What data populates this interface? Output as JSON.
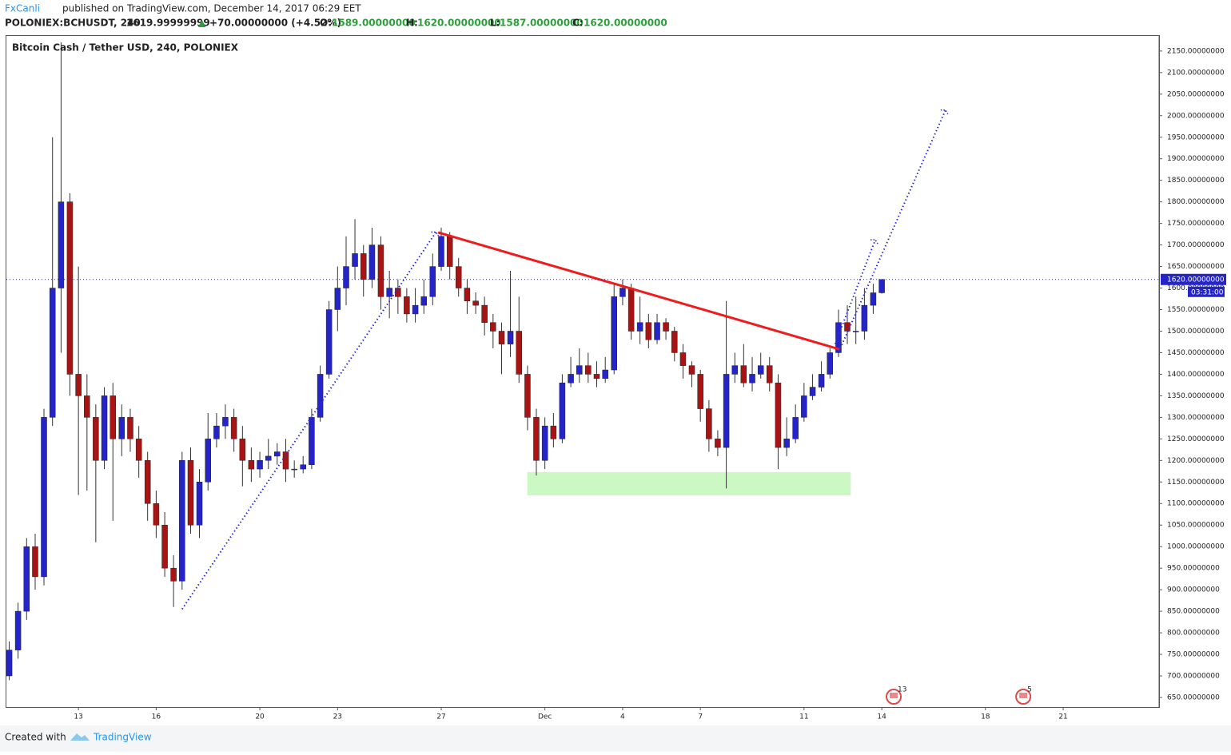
{
  "header": {
    "author": "FxCanli",
    "published": "published on TradingView.com, December 14, 2017 06:29 EET",
    "symbol": "POLONIEX:BCHUSDT, 240",
    "price": "1619.99999999",
    "arrow": "▲",
    "change": "+70.00000000 (+4.52%)",
    "o_label": "O:",
    "o_value": "1589.00000000",
    "h_label": "H:",
    "h_value": "1620.00000000",
    "l_label": "L:",
    "l_value": "1587.00000000",
    "c_label": "C:",
    "c_value": "1620.00000000"
  },
  "footer": {
    "created": "Created with",
    "brand": "TradingView"
  },
  "chart_data": {
    "type": "candlestick",
    "title": "Bitcoin Cash / Tether USD, 240, POLONIEX",
    "up_color": "#2424c8",
    "down_color": "#a81414",
    "x": [
      10.33,
      10.67,
      11,
      11.33,
      11.67,
      12,
      12.33,
      12.67,
      13,
      13.33,
      13.67,
      14,
      14.33,
      14.67,
      15,
      15.33,
      15.67,
      16,
      16.33,
      16.67,
      17,
      17.33,
      17.67,
      18,
      18.33,
      18.67,
      19,
      19.33,
      19.67,
      20,
      20.33,
      20.67,
      21,
      21.33,
      21.67,
      22,
      22.33,
      22.67,
      23,
      23.33,
      23.67,
      24,
      24.33,
      24.67,
      25,
      25.33,
      25.67,
      26,
      26.33,
      26.67,
      27,
      27.33,
      27.67,
      28,
      28.33,
      28.67,
      29,
      29.33,
      29.67,
      30,
      30.33,
      30.67,
      31,
      31.33,
      31.67,
      32,
      32.33,
      32.67,
      33,
      33.33,
      33.67,
      34,
      34.33,
      34.67,
      35,
      35.33,
      35.67,
      36,
      36.33,
      36.67,
      37,
      37.33,
      37.67,
      38,
      38.33,
      38.67,
      39,
      39.33,
      39.67,
      40,
      40.33,
      40.67,
      41,
      41.33,
      41.67,
      42,
      42.33,
      42.67,
      43,
      43.33,
      43.67,
      44
    ],
    "open": [
      700,
      760,
      850,
      1000,
      930,
      1300,
      1600,
      1800,
      1400,
      1350,
      1300,
      1200,
      1350,
      1250,
      1300,
      1250,
      1200,
      1100,
      1050,
      950,
      920,
      1200,
      1050,
      1150,
      1250,
      1280,
      1300,
      1250,
      1200,
      1180,
      1200,
      1210,
      1220,
      1180,
      1180,
      1190,
      1300,
      1400,
      1550,
      1600,
      1650,
      1680,
      1620,
      1700,
      1580,
      1600,
      1580,
      1540,
      1560,
      1580,
      1650,
      1720,
      1650,
      1600,
      1570,
      1560,
      1520,
      1500,
      1470,
      1500,
      1400,
      1300,
      1200,
      1280,
      1250,
      1380,
      1400,
      1420,
      1400,
      1390,
      1410,
      1580,
      1600,
      1500,
      1520,
      1480,
      1520,
      1500,
      1450,
      1420,
      1400,
      1320,
      1250,
      1230,
      1400,
      1420,
      1380,
      1400,
      1420,
      1380,
      1230,
      1250,
      1300,
      1350,
      1370,
      1400,
      1450,
      1520,
      1500,
      1500,
      1560,
      1589
    ],
    "high": [
      780,
      870,
      1020,
      1030,
      1320,
      1950,
      2170,
      1820,
      1650,
      1400,
      1330,
      1370,
      1380,
      1330,
      1320,
      1280,
      1220,
      1130,
      1080,
      980,
      1220,
      1230,
      1180,
      1310,
      1310,
      1330,
      1320,
      1280,
      1230,
      1220,
      1250,
      1240,
      1250,
      1200,
      1210,
      1320,
      1420,
      1570,
      1650,
      1720,
      1760,
      1700,
      1740,
      1720,
      1640,
      1620,
      1600,
      1600,
      1620,
      1680,
      1740,
      1730,
      1670,
      1620,
      1590,
      1580,
      1540,
      1520,
      1640,
      1580,
      1420,
      1320,
      1300,
      1310,
      1400,
      1440,
      1460,
      1450,
      1430,
      1440,
      1610,
      1620,
      1610,
      1580,
      1540,
      1540,
      1530,
      1510,
      1470,
      1430,
      1410,
      1340,
      1270,
      1570,
      1450,
      1470,
      1440,
      1450,
      1440,
      1400,
      1300,
      1330,
      1380,
      1400,
      1430,
      1460,
      1550,
      1560,
      1580,
      1600,
      1610,
      1620
    ],
    "low": [
      690,
      740,
      830,
      900,
      910,
      1280,
      1450,
      1350,
      1120,
      1130,
      1010,
      1180,
      1060,
      1210,
      1220,
      1160,
      1060,
      1020,
      930,
      860,
      900,
      1030,
      1020,
      1130,
      1230,
      1250,
      1220,
      1140,
      1150,
      1160,
      1180,
      1190,
      1150,
      1160,
      1170,
      1180,
      1290,
      1390,
      1500,
      1560,
      1620,
      1580,
      1600,
      1550,
      1530,
      1540,
      1520,
      1520,
      1540,
      1560,
      1640,
      1620,
      1580,
      1540,
      1540,
      1490,
      1460,
      1400,
      1440,
      1380,
      1270,
      1165,
      1180,
      1230,
      1240,
      1370,
      1380,
      1380,
      1370,
      1380,
      1400,
      1560,
      1480,
      1470,
      1460,
      1470,
      1480,
      1430,
      1390,
      1370,
      1290,
      1220,
      1210,
      1135,
      1380,
      1370,
      1360,
      1390,
      1360,
      1180,
      1210,
      1240,
      1290,
      1340,
      1360,
      1390,
      1440,
      1470,
      1470,
      1480,
      1540,
      1587
    ],
    "close": [
      760,
      850,
      1000,
      930,
      1300,
      1600,
      1800,
      1400,
      1350,
      1300,
      1200,
      1350,
      1250,
      1300,
      1250,
      1200,
      1100,
      1050,
      950,
      920,
      1200,
      1050,
      1150,
      1250,
      1280,
      1300,
      1250,
      1200,
      1180,
      1200,
      1210,
      1220,
      1180,
      1180,
      1190,
      1300,
      1400,
      1550,
      1600,
      1650,
      1680,
      1620,
      1700,
      1580,
      1600,
      1580,
      1540,
      1560,
      1580,
      1650,
      1720,
      1650,
      1600,
      1570,
      1560,
      1520,
      1500,
      1470,
      1500,
      1400,
      1300,
      1200,
      1280,
      1250,
      1380,
      1400,
      1420,
      1400,
      1390,
      1410,
      1580,
      1600,
      1500,
      1520,
      1480,
      1520,
      1500,
      1450,
      1420,
      1400,
      1320,
      1250,
      1230,
      1400,
      1420,
      1380,
      1400,
      1420,
      1380,
      1230,
      1250,
      1300,
      1350,
      1370,
      1400,
      1450,
      1520,
      1500,
      1500,
      1560,
      1589,
      1620
    ],
    "xlim": [
      10.22,
      54.7
    ],
    "ylim": [
      627.7,
      2185
    ],
    "xticks": [
      13,
      16,
      20,
      23,
      27,
      {
        "value": 31,
        "label": "Dec"
      },
      {
        "value": 34,
        "label": "4"
      },
      {
        "value": 37,
        "label": "7"
      },
      {
        "value": 41,
        "label": "11"
      },
      {
        "value": 44,
        "label": "14"
      },
      {
        "value": 48,
        "label": "18"
      },
      {
        "value": 51,
        "label": "21"
      }
    ],
    "yticks": [
      {
        "value": 650,
        "label": "650.00000000"
      },
      {
        "value": 700,
        "label": "700.00000000"
      },
      {
        "value": 750,
        "label": "750.00000000"
      },
      {
        "value": 800,
        "label": "800.00000000"
      },
      {
        "value": 850,
        "label": "850.00000000"
      },
      {
        "value": 900,
        "label": "900.00000000"
      },
      {
        "value": 950,
        "label": "950.00000000"
      },
      {
        "value": 1000,
        "label": "1000.00000000"
      },
      {
        "value": 1050,
        "label": "1050.00000000"
      },
      {
        "value": 1100,
        "label": "1100.00000000"
      },
      {
        "value": 1150,
        "label": "1150.00000000"
      },
      {
        "value": 1200,
        "label": "1200.00000000"
      },
      {
        "value": 1250,
        "label": "1250.00000000"
      },
      {
        "value": 1300,
        "label": "1300.00000000"
      },
      {
        "value": 1350,
        "label": "1350.00000000"
      },
      {
        "value": 1400,
        "label": "1400.00000000"
      },
      {
        "value": 1450,
        "label": "1450.00000000"
      },
      {
        "value": 1500,
        "label": "1500.00000000"
      },
      {
        "value": 1550,
        "label": "1550.00000000"
      },
      {
        "value": 1600,
        "label": "1600.00000000"
      },
      {
        "value": 1650,
        "label": "1650.00000000"
      },
      {
        "value": 1700,
        "label": "1700.00000000"
      },
      {
        "value": 1750,
        "label": "1750.00000000"
      },
      {
        "value": 1800,
        "label": "1800.00000000"
      },
      {
        "value": 1850,
        "label": "1850.00000000"
      },
      {
        "value": 1900,
        "label": "1900.00000000"
      },
      {
        "value": 1950,
        "label": "1950.00000000"
      },
      {
        "value": 2000,
        "label": "2000.00000000"
      },
      {
        "value": 2050,
        "label": "2050.00000000"
      },
      {
        "value": 2100,
        "label": "2100.00000000"
      },
      {
        "value": 2150,
        "label": "2150.00000000"
      }
    ],
    "last_price": {
      "value": 1620,
      "label": "1620.00000000"
    },
    "countdown": "03:31:00",
    "trendline": {
      "color": "#ee1c1c",
      "x": [
        26.88,
        42.37
      ],
      "y": [
        1729,
        1458
      ]
    },
    "projections": [
      {
        "x": [
          17.0,
          26.8
        ],
        "y": [
          855,
          1730
        ]
      },
      {
        "x": [
          42.4,
          46.46
        ],
        "y": [
          1460,
          2013
        ]
      },
      {
        "x": [
          42.2,
          43.75
        ],
        "y": [
          1470,
          1712
        ]
      }
    ],
    "projection_color": "#2a2ae0",
    "zone": {
      "x": [
        30.32,
        42.8
      ],
      "y": [
        1119,
        1173
      ],
      "color": "#ccf8c4"
    },
    "events": [
      {
        "x": 44.46,
        "label": "13"
      },
      {
        "x": 49.46,
        "label": "5"
      }
    ]
  }
}
